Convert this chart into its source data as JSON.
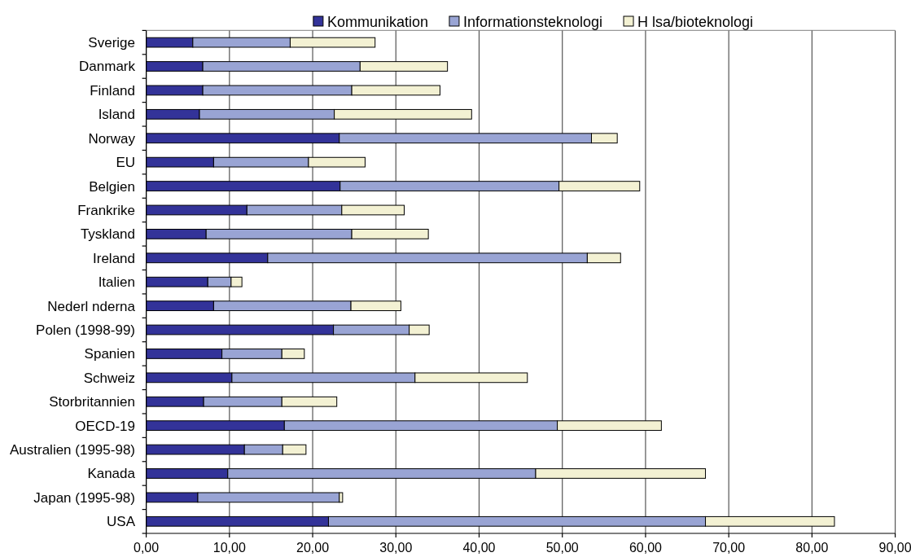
{
  "chart_data": {
    "type": "bar",
    "orientation": "horizontal",
    "stacked": true,
    "categories": [
      "Sverige",
      "Danmark",
      "Finland",
      "Island",
      "Norway",
      "EU",
      "Belgien",
      "Frankrike",
      "Tyskland",
      "Ireland",
      "Italien",
      "Nederl nderna",
      "Polen (1998-99)",
      "Spanien",
      "Schweiz",
      "Storbritannien",
      "OECD-19",
      "Australien (1995-98)",
      "Kanada",
      "Japan (1995-98)",
      "USA"
    ],
    "series": [
      {
        "name": "Kommunikation",
        "color": "#333399",
        "values": [
          5.6,
          6.8,
          6.8,
          6.4,
          23.2,
          8.1,
          23.3,
          12.1,
          7.2,
          14.6,
          7.4,
          8.1,
          22.5,
          9.1,
          10.3,
          6.9,
          16.6,
          11.8,
          9.8,
          6.2,
          21.9
        ]
      },
      {
        "name": "Informationsteknologi",
        "color": "#99a4d4",
        "values": [
          11.7,
          18.9,
          17.9,
          16.2,
          30.3,
          11.4,
          26.3,
          11.4,
          17.5,
          38.4,
          2.8,
          16.5,
          9.1,
          7.2,
          22.0,
          9.4,
          32.8,
          4.6,
          37.0,
          17.0,
          45.3
        ]
      },
      {
        "name": "H lsa/bioteknologi",
        "color": "#f3f1d3",
        "values": [
          10.2,
          10.5,
          10.6,
          16.5,
          3.1,
          6.8,
          9.7,
          7.5,
          9.2,
          4.0,
          1.3,
          6.0,
          2.4,
          2.7,
          13.5,
          6.6,
          12.5,
          2.8,
          20.4,
          0.4,
          15.5
        ]
      }
    ],
    "xlim": [
      0,
      90
    ],
    "xticks": [
      {
        "value": 0,
        "label": "0,00"
      },
      {
        "value": 10,
        "label": "10,00"
      },
      {
        "value": 20,
        "label": "20,00"
      },
      {
        "value": 30,
        "label": "30,00"
      },
      {
        "value": 40,
        "label": "40,00"
      },
      {
        "value": 50,
        "label": "50,00"
      },
      {
        "value": 60,
        "label": "60,00"
      },
      {
        "value": 70,
        "label": "70,00"
      },
      {
        "value": 80,
        "label": "80,00"
      },
      {
        "value": 90,
        "label": "90,00"
      }
    ],
    "grid": "x",
    "legend": "top"
  }
}
